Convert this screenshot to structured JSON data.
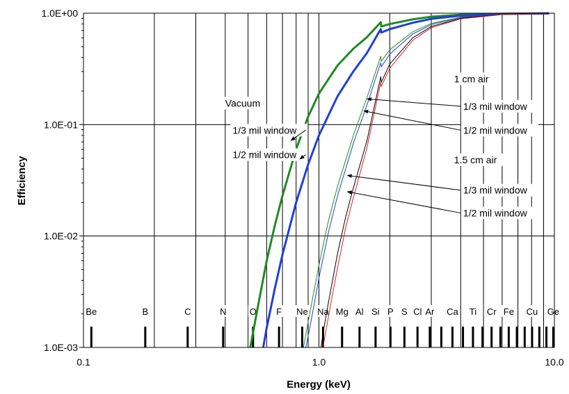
{
  "chart_data": {
    "type": "line",
    "title": "",
    "xlabel": "Energy (keV)",
    "ylabel": "Efficiency",
    "x_scale": "log",
    "y_scale": "log",
    "xlim": [
      0.1,
      10.0
    ],
    "ylim": [
      0.001,
      1.0
    ],
    "x_tick_labels": [
      {
        "value": 0.1,
        "label": "0.1"
      },
      {
        "value": 1.0,
        "label": "1.0"
      },
      {
        "value": 10.0,
        "label": "10.0"
      }
    ],
    "y_tick_labels": [
      {
        "value": 1.0,
        "label": "1.0E+00"
      },
      {
        "value": 0.1,
        "label": "1.0E-01"
      },
      {
        "value": 0.01,
        "label": "1.0E-02"
      },
      {
        "value": 0.001,
        "label": "1.0E-03"
      }
    ],
    "grid": true,
    "colors": {
      "green": "#1f8a1f",
      "blue": "#1f3fd9",
      "black": "#000000",
      "red": "#d42020"
    },
    "series": [
      {
        "key": "vac13",
        "color": "green",
        "width": 3,
        "points": [
          [
            0.511,
            0.001
          ],
          [
            0.55,
            0.0023
          ],
          [
            0.6,
            0.006
          ],
          [
            0.65,
            0.0125
          ],
          [
            0.7,
            0.023
          ],
          [
            0.8,
            0.06
          ],
          [
            0.9,
            0.118
          ],
          [
            1.0,
            0.19
          ],
          [
            1.2,
            0.34
          ],
          [
            1.4,
            0.48
          ],
          [
            1.6,
            0.61
          ],
          [
            1.83,
            0.83
          ],
          [
            1.84,
            0.76
          ],
          [
            2.0,
            0.8
          ],
          [
            2.5,
            0.88
          ],
          [
            3.0,
            0.93
          ],
          [
            4.0,
            0.97
          ],
          [
            6.0,
            0.99
          ],
          [
            9.5,
            0.997
          ]
        ]
      },
      {
        "key": "vac12",
        "color": "blue",
        "width": 3,
        "points": [
          [
            0.58,
            0.001
          ],
          [
            0.6,
            0.0015
          ],
          [
            0.65,
            0.0034
          ],
          [
            0.7,
            0.0068
          ],
          [
            0.8,
            0.02
          ],
          [
            0.9,
            0.044
          ],
          [
            1.0,
            0.08
          ],
          [
            1.2,
            0.18
          ],
          [
            1.4,
            0.3
          ],
          [
            1.6,
            0.44
          ],
          [
            1.83,
            0.72
          ],
          [
            1.84,
            0.67
          ],
          [
            2.0,
            0.72
          ],
          [
            2.5,
            0.82
          ],
          [
            3.0,
            0.89
          ],
          [
            4.0,
            0.95
          ],
          [
            6.0,
            0.985
          ],
          [
            9.5,
            0.996
          ]
        ]
      },
      {
        "key": "air1_13",
        "color": "green",
        "width": 1,
        "points": [
          [
            0.86,
            0.001
          ],
          [
            0.9,
            0.0017
          ],
          [
            1.0,
            0.0055
          ],
          [
            1.1,
            0.014
          ],
          [
            1.2,
            0.028
          ],
          [
            1.4,
            0.08
          ],
          [
            1.6,
            0.175
          ],
          [
            1.83,
            0.41
          ],
          [
            1.84,
            0.37
          ],
          [
            2.0,
            0.47
          ],
          [
            2.5,
            0.68
          ],
          [
            3.0,
            0.81
          ],
          [
            4.0,
            0.92
          ],
          [
            6.0,
            0.98
          ],
          [
            9.5,
            0.995
          ]
        ]
      },
      {
        "key": "air1_12",
        "color": "blue",
        "width": 1,
        "points": [
          [
            0.88,
            0.001
          ],
          [
            0.92,
            0.0016
          ],
          [
            1.0,
            0.0042
          ],
          [
            1.1,
            0.011
          ],
          [
            1.2,
            0.023
          ],
          [
            1.4,
            0.068
          ],
          [
            1.6,
            0.15
          ],
          [
            1.83,
            0.36
          ],
          [
            1.84,
            0.33
          ],
          [
            2.0,
            0.43
          ],
          [
            2.5,
            0.65
          ],
          [
            3.0,
            0.79
          ],
          [
            4.0,
            0.915
          ],
          [
            6.0,
            0.978
          ],
          [
            9.5,
            0.995
          ]
        ]
      },
      {
        "key": "air15_13",
        "color": "black",
        "width": 1,
        "points": [
          [
            1.02,
            0.001
          ],
          [
            1.05,
            0.0015
          ],
          [
            1.1,
            0.0026
          ],
          [
            1.2,
            0.007
          ],
          [
            1.3,
            0.015
          ],
          [
            1.4,
            0.027
          ],
          [
            1.6,
            0.072
          ],
          [
            1.83,
            0.27
          ],
          [
            1.84,
            0.24
          ],
          [
            2.0,
            0.35
          ],
          [
            2.5,
            0.6
          ],
          [
            3.0,
            0.76
          ],
          [
            4.0,
            0.9
          ],
          [
            6.0,
            0.975
          ],
          [
            9.5,
            0.994
          ]
        ]
      },
      {
        "key": "air15_12",
        "color": "red",
        "width": 1,
        "points": [
          [
            1.04,
            0.001
          ],
          [
            1.07,
            0.0014
          ],
          [
            1.12,
            0.0024
          ],
          [
            1.2,
            0.0052
          ],
          [
            1.3,
            0.012
          ],
          [
            1.4,
            0.022
          ],
          [
            1.6,
            0.062
          ],
          [
            1.83,
            0.24
          ],
          [
            1.84,
            0.22
          ],
          [
            2.0,
            0.32
          ],
          [
            2.5,
            0.57
          ],
          [
            3.0,
            0.74
          ],
          [
            4.0,
            0.89
          ],
          [
            6.0,
            0.972
          ],
          [
            9.5,
            0.994
          ]
        ]
      }
    ],
    "element_markers": [
      {
        "symbol": "Be",
        "energy": 0.108
      },
      {
        "symbol": "B",
        "energy": 0.183
      },
      {
        "symbol": "C",
        "energy": 0.277
      },
      {
        "symbol": "N",
        "energy": 0.392
      },
      {
        "symbol": "O",
        "energy": 0.525
      },
      {
        "symbol": "F",
        "energy": 0.677
      },
      {
        "symbol": "Ne",
        "energy": 0.849
      },
      {
        "symbol": "Na",
        "energy": 1.041
      },
      {
        "symbol": "Mg",
        "energy": 1.254
      },
      {
        "symbol": "Al",
        "energy": 1.487
      },
      {
        "symbol": "Si",
        "energy": 1.74
      },
      {
        "symbol": "P",
        "energy": 2.013
      },
      {
        "symbol": "S",
        "energy": 2.307
      },
      {
        "symbol": "Cl",
        "energy": 2.622
      },
      {
        "symbol": "Ar",
        "energy": 2.957
      },
      {
        "symbol": "Ca",
        "energy": 3.69
      },
      {
        "symbol": "Ti",
        "energy": 4.51
      },
      {
        "symbol": "Cr",
        "energy": 5.41
      },
      {
        "symbol": "Fe",
        "energy": 6.4
      },
      {
        "symbol": "Cu",
        "energy": 8.04
      },
      {
        "symbol": "Ge",
        "energy": 9.89
      }
    ],
    "marker_ticks": [
      0.108,
      0.183,
      0.277,
      0.392,
      0.525,
      0.677,
      0.849,
      1.041,
      1.254,
      1.487,
      1.74,
      2.013,
      2.307,
      2.622,
      2.957,
      3.31,
      3.69,
      4.09,
      4.51,
      4.95,
      5.41,
      5.9,
      6.4,
      6.93,
      7.48,
      8.04,
      8.63,
      9.25,
      9.89
    ],
    "annotations": [
      {
        "key": "vacuum",
        "text": "Vacuum",
        "x": 0.4,
        "y": 0.145,
        "anchor": "start"
      },
      {
        "key": "vac13",
        "text": "1/3 mil window",
        "x": 0.43,
        "y": 0.083,
        "anchor": "start",
        "arrow_to": [
          0.76,
          0.072
        ]
      },
      {
        "key": "vac12",
        "text": "1/2 mil window",
        "x": 0.43,
        "y": 0.05,
        "anchor": "start",
        "arrow_to": [
          0.83,
          0.049
        ]
      },
      {
        "key": "air1",
        "text": "1 cm air",
        "x": 3.75,
        "y": 0.24,
        "anchor": "start"
      },
      {
        "key": "air1_13",
        "text": "1/3 mil window",
        "x": 4.1,
        "y": 0.136,
        "anchor": "start",
        "arrow_to": [
          1.6,
          0.17
        ]
      },
      {
        "key": "air1_12",
        "text": "1/2 mil window",
        "x": 4.1,
        "y": 0.083,
        "anchor": "start",
        "arrow_to": [
          1.55,
          0.133
        ]
      },
      {
        "key": "air15",
        "text": "1.5 cm air",
        "x": 3.75,
        "y": 0.045,
        "anchor": "start"
      },
      {
        "key": "air15_13",
        "text": "1/3 mil window",
        "x": 4.1,
        "y": 0.024,
        "anchor": "start",
        "arrow_to": [
          1.32,
          0.035
        ]
      },
      {
        "key": "air15_12",
        "text": "1/2 mil window",
        "x": 4.1,
        "y": 0.015,
        "anchor": "start",
        "arrow_to": [
          1.32,
          0.025
        ]
      }
    ]
  }
}
